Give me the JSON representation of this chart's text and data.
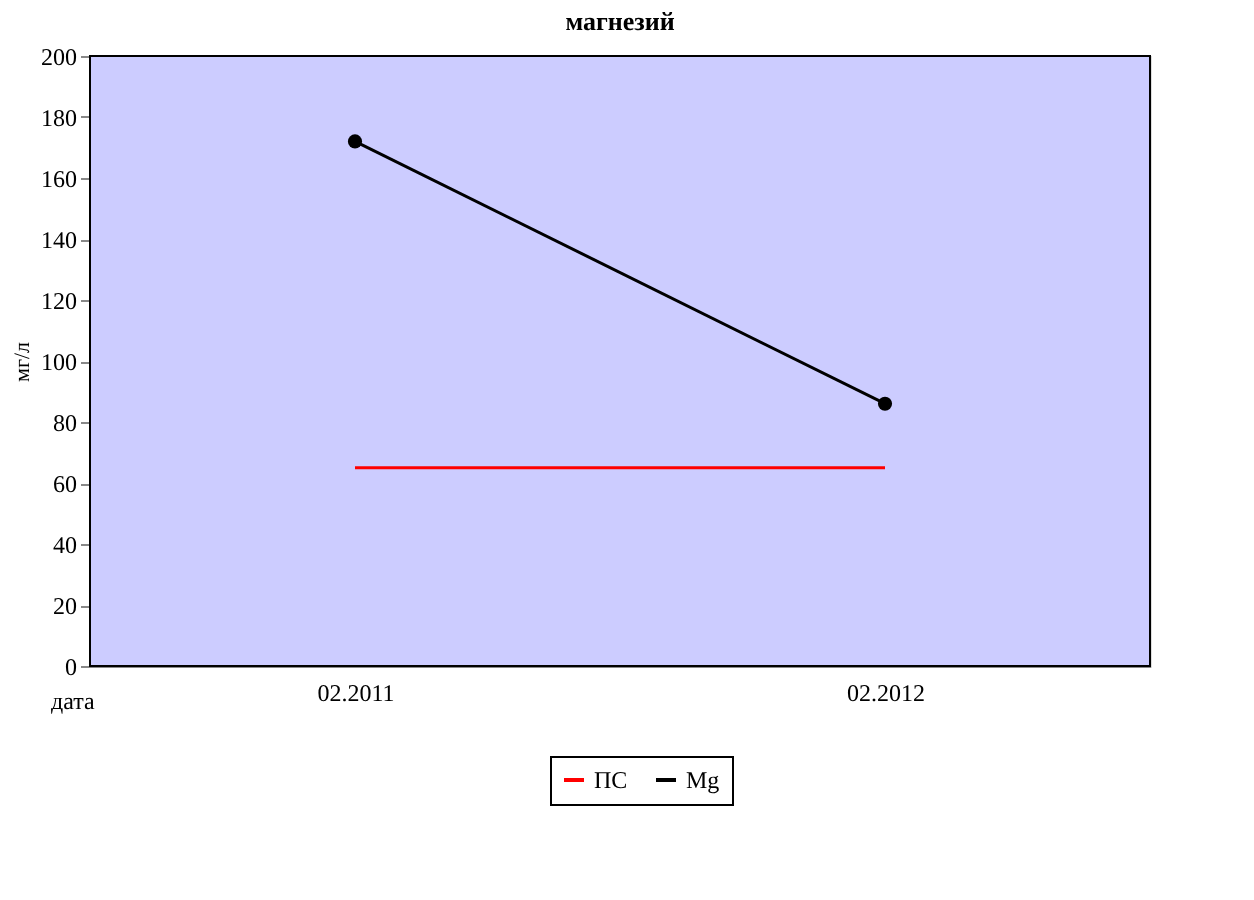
{
  "chart_data": {
    "type": "line",
    "title": "магнезий",
    "xlabel": "дата",
    "ylabel": "мг/л",
    "categories": [
      "02.2011",
      "02.2012"
    ],
    "series": [
      {
        "name": "ПС",
        "color": "#ff0000",
        "values": [
          65,
          65
        ],
        "marker": "none"
      },
      {
        "name": "Mg",
        "color": "#000000",
        "values": [
          172,
          86
        ],
        "marker": "circle"
      }
    ],
    "ylim": [
      0,
      200
    ],
    "yticks": [
      0,
      20,
      40,
      60,
      80,
      100,
      120,
      140,
      160,
      180,
      200
    ],
    "legend": "bottom"
  }
}
